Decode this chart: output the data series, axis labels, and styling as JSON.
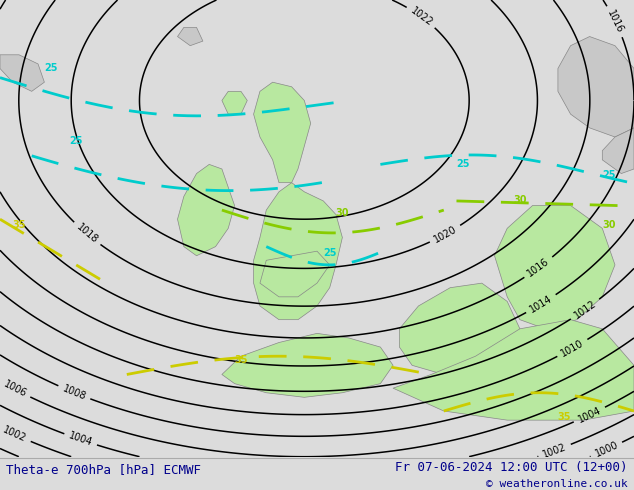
{
  "title_left": "Theta-e 700hPa [hPa] ECMWF",
  "title_right": "Fr 07-06-2024 12:00 UTC (12+00)",
  "copyright": "© weatheronline.co.uk",
  "bg_color": "#dcdcdc",
  "land_green_color": "#b8e8a0",
  "land_gray_color": "#c8c8c8",
  "text_color": "#00008b",
  "contour_color": "#000000",
  "cyan_color": "#00cccc",
  "yellow_color": "#cccc00",
  "lime_color": "#88cc00",
  "figsize": [
    6.34,
    4.9
  ],
  "dpi": 100
}
